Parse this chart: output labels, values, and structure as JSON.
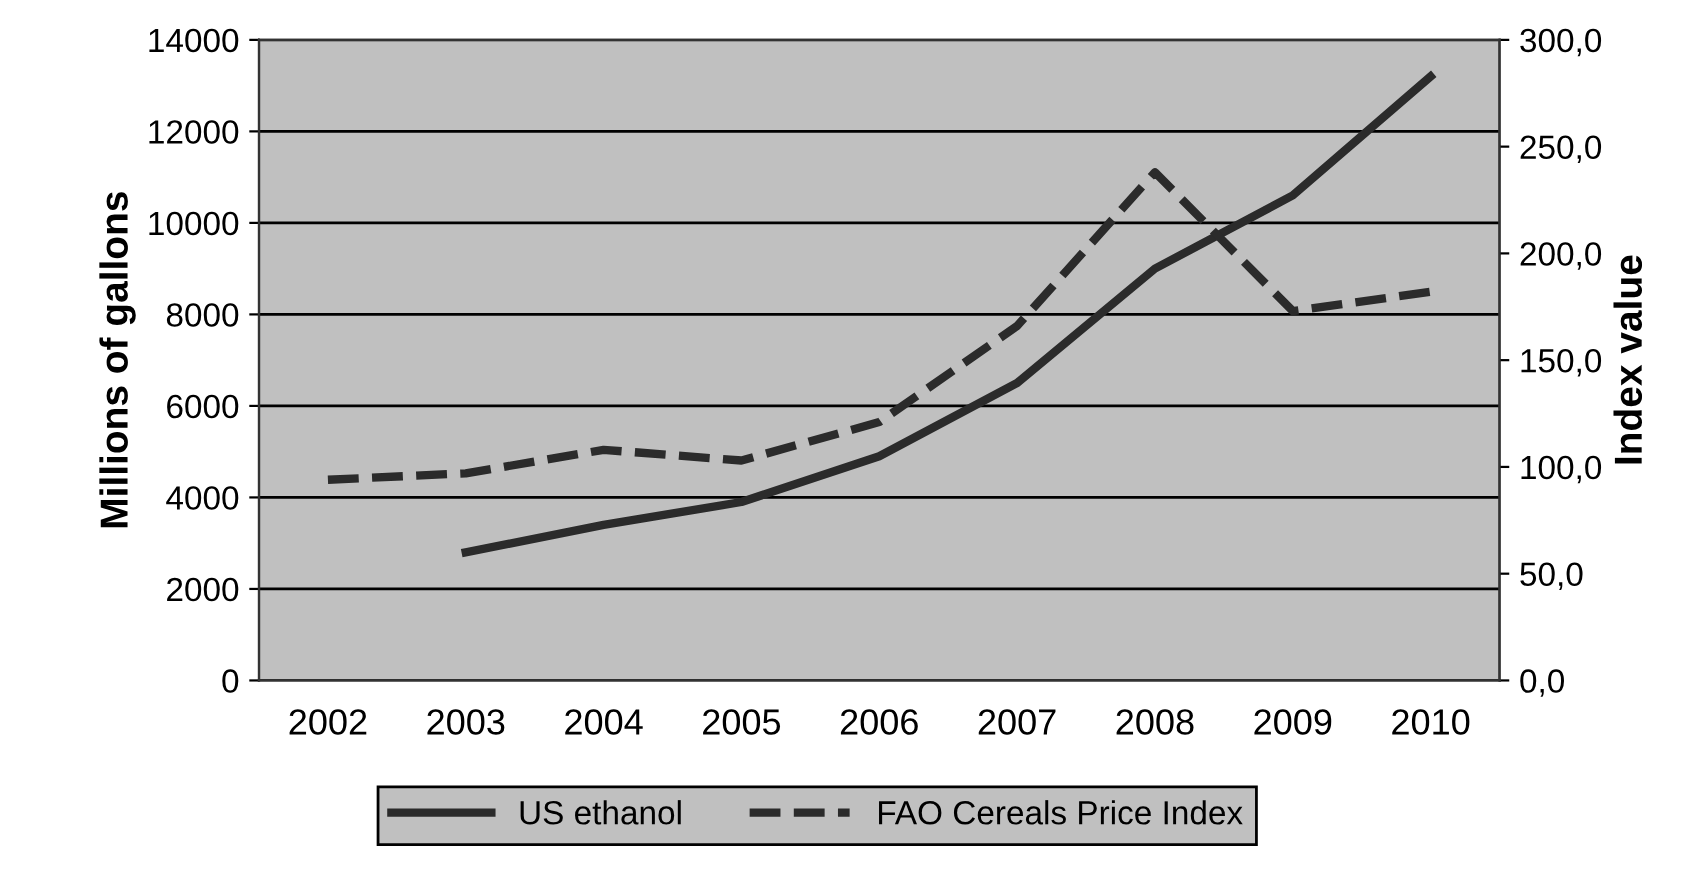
{
  "chart_data": {
    "type": "line",
    "categories": [
      "2002",
      "2003",
      "2004",
      "2005",
      "2006",
      "2007",
      "2008",
      "2009",
      "2010"
    ],
    "ylabel": "Millions of gallons",
    "y2label": "Index value",
    "series": [
      {
        "name": "US ethanol",
        "color": "#2b2b2b",
        "line_style": "solid",
        "values": [
          null,
          2800,
          3400,
          3900,
          4900,
          6500,
          9000,
          10600,
          13200
        ]
      },
      {
        "name": "FAO Cereals Price Index",
        "color": "#2b2b2b",
        "line_style": "dashed",
        "axis": "y2",
        "values": [
          94,
          97,
          108,
          103,
          121,
          166,
          238,
          173,
          182
        ]
      }
    ],
    "ylim": [
      0,
      14000
    ],
    "yticks": [
      0,
      2000,
      4000,
      6000,
      8000,
      10000,
      12000,
      14000
    ],
    "y2lim": [
      0,
      300
    ],
    "y2ticks": [
      {
        "value": 0,
        "label": "0,0"
      },
      {
        "value": 50,
        "label": "50,0"
      },
      {
        "value": 100,
        "label": "100,0"
      },
      {
        "value": 150,
        "label": "150,0"
      },
      {
        "value": 200,
        "label": "200,0"
      },
      {
        "value": 250,
        "label": "250,0"
      },
      {
        "value": 300,
        "label": "300,0"
      }
    ],
    "grid": "y",
    "legend": "bottom",
    "marker": "none"
  }
}
